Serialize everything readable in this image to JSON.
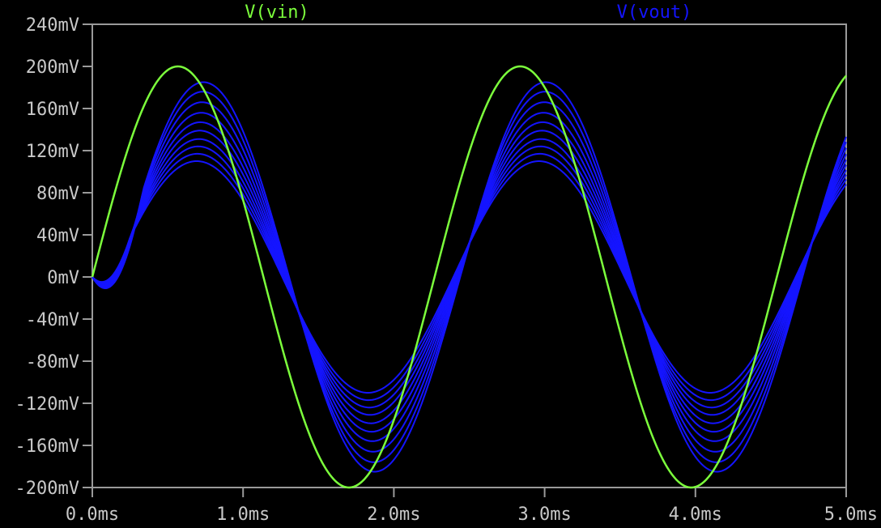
{
  "chart_data": {
    "type": "line",
    "background": "#000000",
    "axis_color": "#9a9a9a",
    "label_color": "#c8c8c8",
    "grid": false,
    "legend": "top",
    "xlim": [
      0.0,
      5.0
    ],
    "ylim": [
      -200,
      240
    ],
    "xticks": [
      0.0,
      1.0,
      2.0,
      3.0,
      4.0,
      5.0
    ],
    "xtick_labels": [
      "0.0ms",
      "1.0ms",
      "2.0ms",
      "3.0ms",
      "4.0ms",
      "5.0ms"
    ],
    "yticks": [
      240,
      200,
      160,
      120,
      80,
      40,
      0,
      -40,
      -80,
      -120,
      -160,
      -200
    ],
    "ytick_labels": [
      "240mV",
      "200mV",
      "160mV",
      "120mV",
      "80mV",
      "40mV",
      "0mV",
      "-40mV",
      "-80mV",
      "-120mV",
      "-160mV",
      "-200mV"
    ],
    "series": [
      {
        "name": "V(vin)",
        "color": "#7cff3c",
        "kind": "sine",
        "amplitude_mV": 200,
        "period_ms": 2.27,
        "phase_delay_ms": 0
      },
      {
        "name": "V(vout)",
        "color": "#1414ff",
        "kind": "sine-family",
        "step_count": 10,
        "period_ms": 2.27,
        "steps": [
          {
            "amplitude_mV": 185,
            "phase_delay_ms": 0.17
          },
          {
            "amplitude_mV": 176,
            "phase_delay_ms": 0.165
          },
          {
            "amplitude_mV": 166,
            "phase_delay_ms": 0.16
          },
          {
            "amplitude_mV": 156,
            "phase_delay_ms": 0.155
          },
          {
            "amplitude_mV": 147,
            "phase_delay_ms": 0.15
          },
          {
            "amplitude_mV": 139,
            "phase_delay_ms": 0.145
          },
          {
            "amplitude_mV": 131,
            "phase_delay_ms": 0.14
          },
          {
            "amplitude_mV": 124,
            "phase_delay_ms": 0.135
          },
          {
            "amplitude_mV": 117,
            "phase_delay_ms": 0.13
          },
          {
            "amplitude_mV": 110,
            "phase_delay_ms": 0.125
          }
        ]
      }
    ]
  }
}
